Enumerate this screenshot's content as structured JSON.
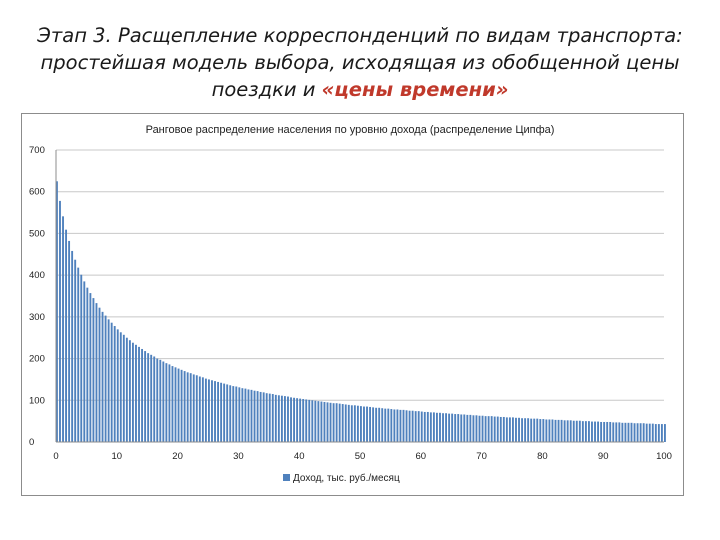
{
  "slide": {
    "title_part1": "Этап 3. Расщепление корреспонденций по видам транспорта: простейшая модель выбора, исходящая из обобщенной цены поездки и ",
    "title_highlight": "«цены времени»",
    "highlight_color": "#c0392b"
  },
  "chart_data": {
    "type": "bar",
    "title": "Ранговое распределение населения по уровню дохода (распределение Ципфа)",
    "xlabel": "",
    "ylabel": "",
    "xlim": [
      0,
      100
    ],
    "ylim": [
      0,
      700
    ],
    "x_ticks": [
      0,
      10,
      20,
      30,
      40,
      50,
      60,
      70,
      80,
      90,
      100
    ],
    "y_ticks": [
      0,
      100,
      200,
      300,
      400,
      500,
      600,
      700
    ],
    "grid": true,
    "legend_position": "bottom",
    "bar_color": "#4f81bd",
    "series": [
      {
        "name": "Доход, тыс. руб./месяц",
        "x_start": 0,
        "x_step": 0.5,
        "values": [
          625,
          578,
          541,
          509,
          482,
          458,
          437,
          418,
          401,
          385,
          370,
          357,
          345,
          333,
          322,
          312,
          303,
          294,
          286,
          278,
          270,
          263,
          257,
          250,
          244,
          238,
          233,
          228,
          223,
          218,
          213,
          209,
          205,
          200,
          197,
          193,
          189,
          186,
          182,
          179,
          176,
          173,
          170,
          167,
          165,
          162,
          160,
          157,
          155,
          152,
          150,
          148,
          146,
          144,
          142,
          140,
          138,
          136,
          134,
          133,
          131,
          129,
          128,
          126,
          125,
          123,
          122,
          120,
          119,
          117,
          116,
          115,
          113,
          112,
          111,
          110,
          109,
          107,
          106,
          105,
          104,
          103,
          102,
          101,
          100,
          99,
          98,
          97,
          96,
          95,
          94,
          93,
          93,
          92,
          91,
          90,
          89,
          88,
          88,
          87,
          86,
          85,
          85,
          84,
          83,
          82,
          82,
          81,
          80,
          80,
          79,
          78,
          78,
          77,
          77,
          76,
          75,
          75,
          74,
          74,
          73,
          72,
          72,
          71,
          71,
          70,
          70,
          69,
          69,
          68,
          68,
          67,
          67,
          66,
          66,
          65,
          65,
          64,
          64,
          63,
          63,
          62,
          62,
          62,
          61,
          61,
          60,
          60,
          59,
          59,
          59,
          58,
          58,
          57,
          57,
          57,
          56,
          56,
          56,
          55,
          55,
          54,
          54,
          54,
          53,
          53,
          53,
          52,
          52,
          52,
          51,
          51,
          51,
          50,
          50,
          50,
          49,
          49,
          49,
          48,
          48,
          48,
          48,
          47,
          47,
          47,
          46,
          46,
          46,
          46,
          45,
          45,
          45,
          45,
          44,
          44,
          44,
          43,
          43,
          43,
          43
        ]
      }
    ]
  }
}
